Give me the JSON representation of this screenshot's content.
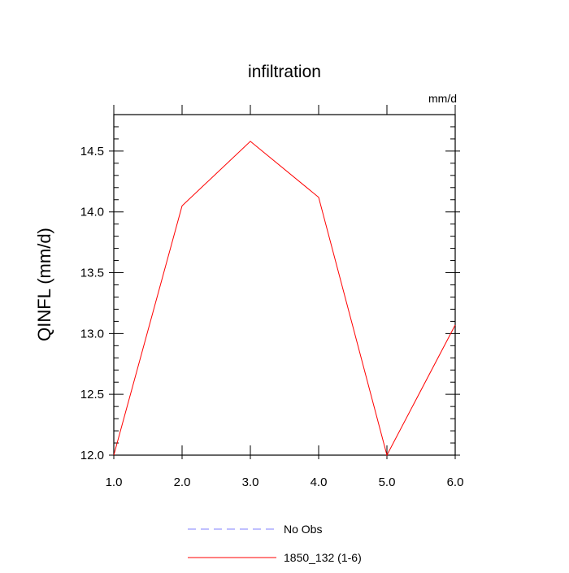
{
  "chart_data": {
    "type": "line",
    "title": "infiltration",
    "unit_label": "mm/d",
    "ylabel": "QINFL  (mm/d)",
    "xlabel": "",
    "xlim": [
      1.0,
      6.0
    ],
    "ylim": [
      12.0,
      14.8
    ],
    "x_ticks": [
      "1.0",
      "2.0",
      "3.0",
      "4.0",
      "5.0",
      "6.0"
    ],
    "y_ticks": [
      "12.0",
      "12.5",
      "13.0",
      "13.5",
      "14.0",
      "14.5"
    ],
    "grid": false,
    "legend_position": "bottom",
    "series": [
      {
        "name": "1850_132 (1-6)",
        "color": "#ff0000",
        "style": "solid",
        "x": [
          1,
          2,
          3,
          4,
          5,
          6
        ],
        "y": [
          12.0,
          14.05,
          14.58,
          14.12,
          12.0,
          13.07
        ]
      },
      {
        "name": "No Obs",
        "color": "#8080ff",
        "style": "dashed",
        "x": [],
        "y": []
      }
    ]
  }
}
